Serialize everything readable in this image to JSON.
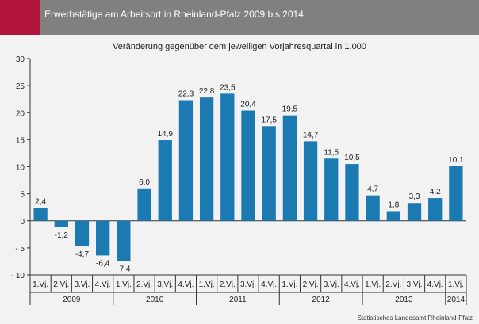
{
  "title": "Erwerbstätige am Arbeitsort in Rheinland-Pfalz 2009 bis 2014",
  "source": "Statistisches Landesamt Rheinland-Pfalz",
  "colors": {
    "bar": "#1c7ab3",
    "header": "#808080",
    "accent": "#b0143a",
    "background": "#f2f2f2"
  },
  "chart_data": {
    "type": "bar",
    "subtitle": "Veränderung gegenüber dem jeweiligen Vorjahresquartal in 1.000",
    "categories": [
      "1.Vj.",
      "2.Vj.",
      "3.Vj.",
      "4.Vj.",
      "1.Vj.",
      "2.Vj.",
      "3.Vj.",
      "4.Vj.",
      "1.Vj.",
      "2.Vj.",
      "3.Vj.",
      "4.Vj.",
      "1.Vj.",
      "2.Vj.",
      "3.Vj.",
      "4.Vj.",
      "1.Vj.",
      "2.Vj.",
      "3.Vj.",
      "4.Vj.",
      "1.Vj."
    ],
    "years": [
      {
        "label": "2009",
        "count": 4
      },
      {
        "label": "2010",
        "count": 4
      },
      {
        "label": "2011",
        "count": 4
      },
      {
        "label": "2012",
        "count": 4
      },
      {
        "label": "2013",
        "count": 4
      },
      {
        "label": "2014",
        "count": 1
      }
    ],
    "values": [
      2.4,
      -1.2,
      -4.7,
      -6.4,
      -7.4,
      6.0,
      14.9,
      22.3,
      22.8,
      23.5,
      20.4,
      17.5,
      19.5,
      14.7,
      11.5,
      10.5,
      4.7,
      1.8,
      3.3,
      4.2,
      10.1
    ],
    "data_labels": [
      "2,4",
      "-1,2",
      "-4,7",
      "-6,4",
      "-7,4",
      "6,0",
      "14,9",
      "22,3",
      "22,8",
      "23,5",
      "20,4",
      "17,5",
      "19,5",
      "14,7",
      "11,5",
      "10,5",
      "4,7",
      "1,8",
      "3,3",
      "4,2",
      "10,1"
    ],
    "y_ticks": [
      "30",
      "25",
      "20",
      "15",
      "10",
      "5",
      "0",
      "- 5",
      "- 10"
    ],
    "ylim": [
      -10,
      30
    ],
    "grid": false,
    "legend": "none"
  }
}
